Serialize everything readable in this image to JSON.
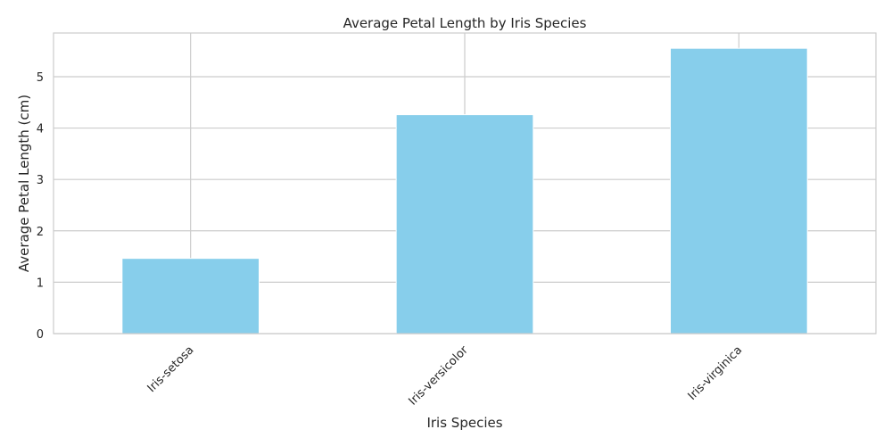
{
  "colors": {
    "bar": "#87CEEB",
    "grid": "#cccccc",
    "text": "#262626",
    "background": "#ffffff"
  },
  "chart_data": {
    "type": "bar",
    "title": "Average Petal Length by Iris Species",
    "xlabel": "Iris Species",
    "ylabel": "Average Petal Length (cm)",
    "categories": [
      "Iris-setosa",
      "Iris-versicolor",
      "Iris-virginica"
    ],
    "values": [
      1.464,
      4.26,
      5.552
    ],
    "ylim": [
      0,
      5.85
    ],
    "yticks": [
      0,
      1,
      2,
      3,
      4,
      5
    ],
    "x_tick_rotation_deg": 45,
    "grid": true,
    "legend": "none"
  }
}
